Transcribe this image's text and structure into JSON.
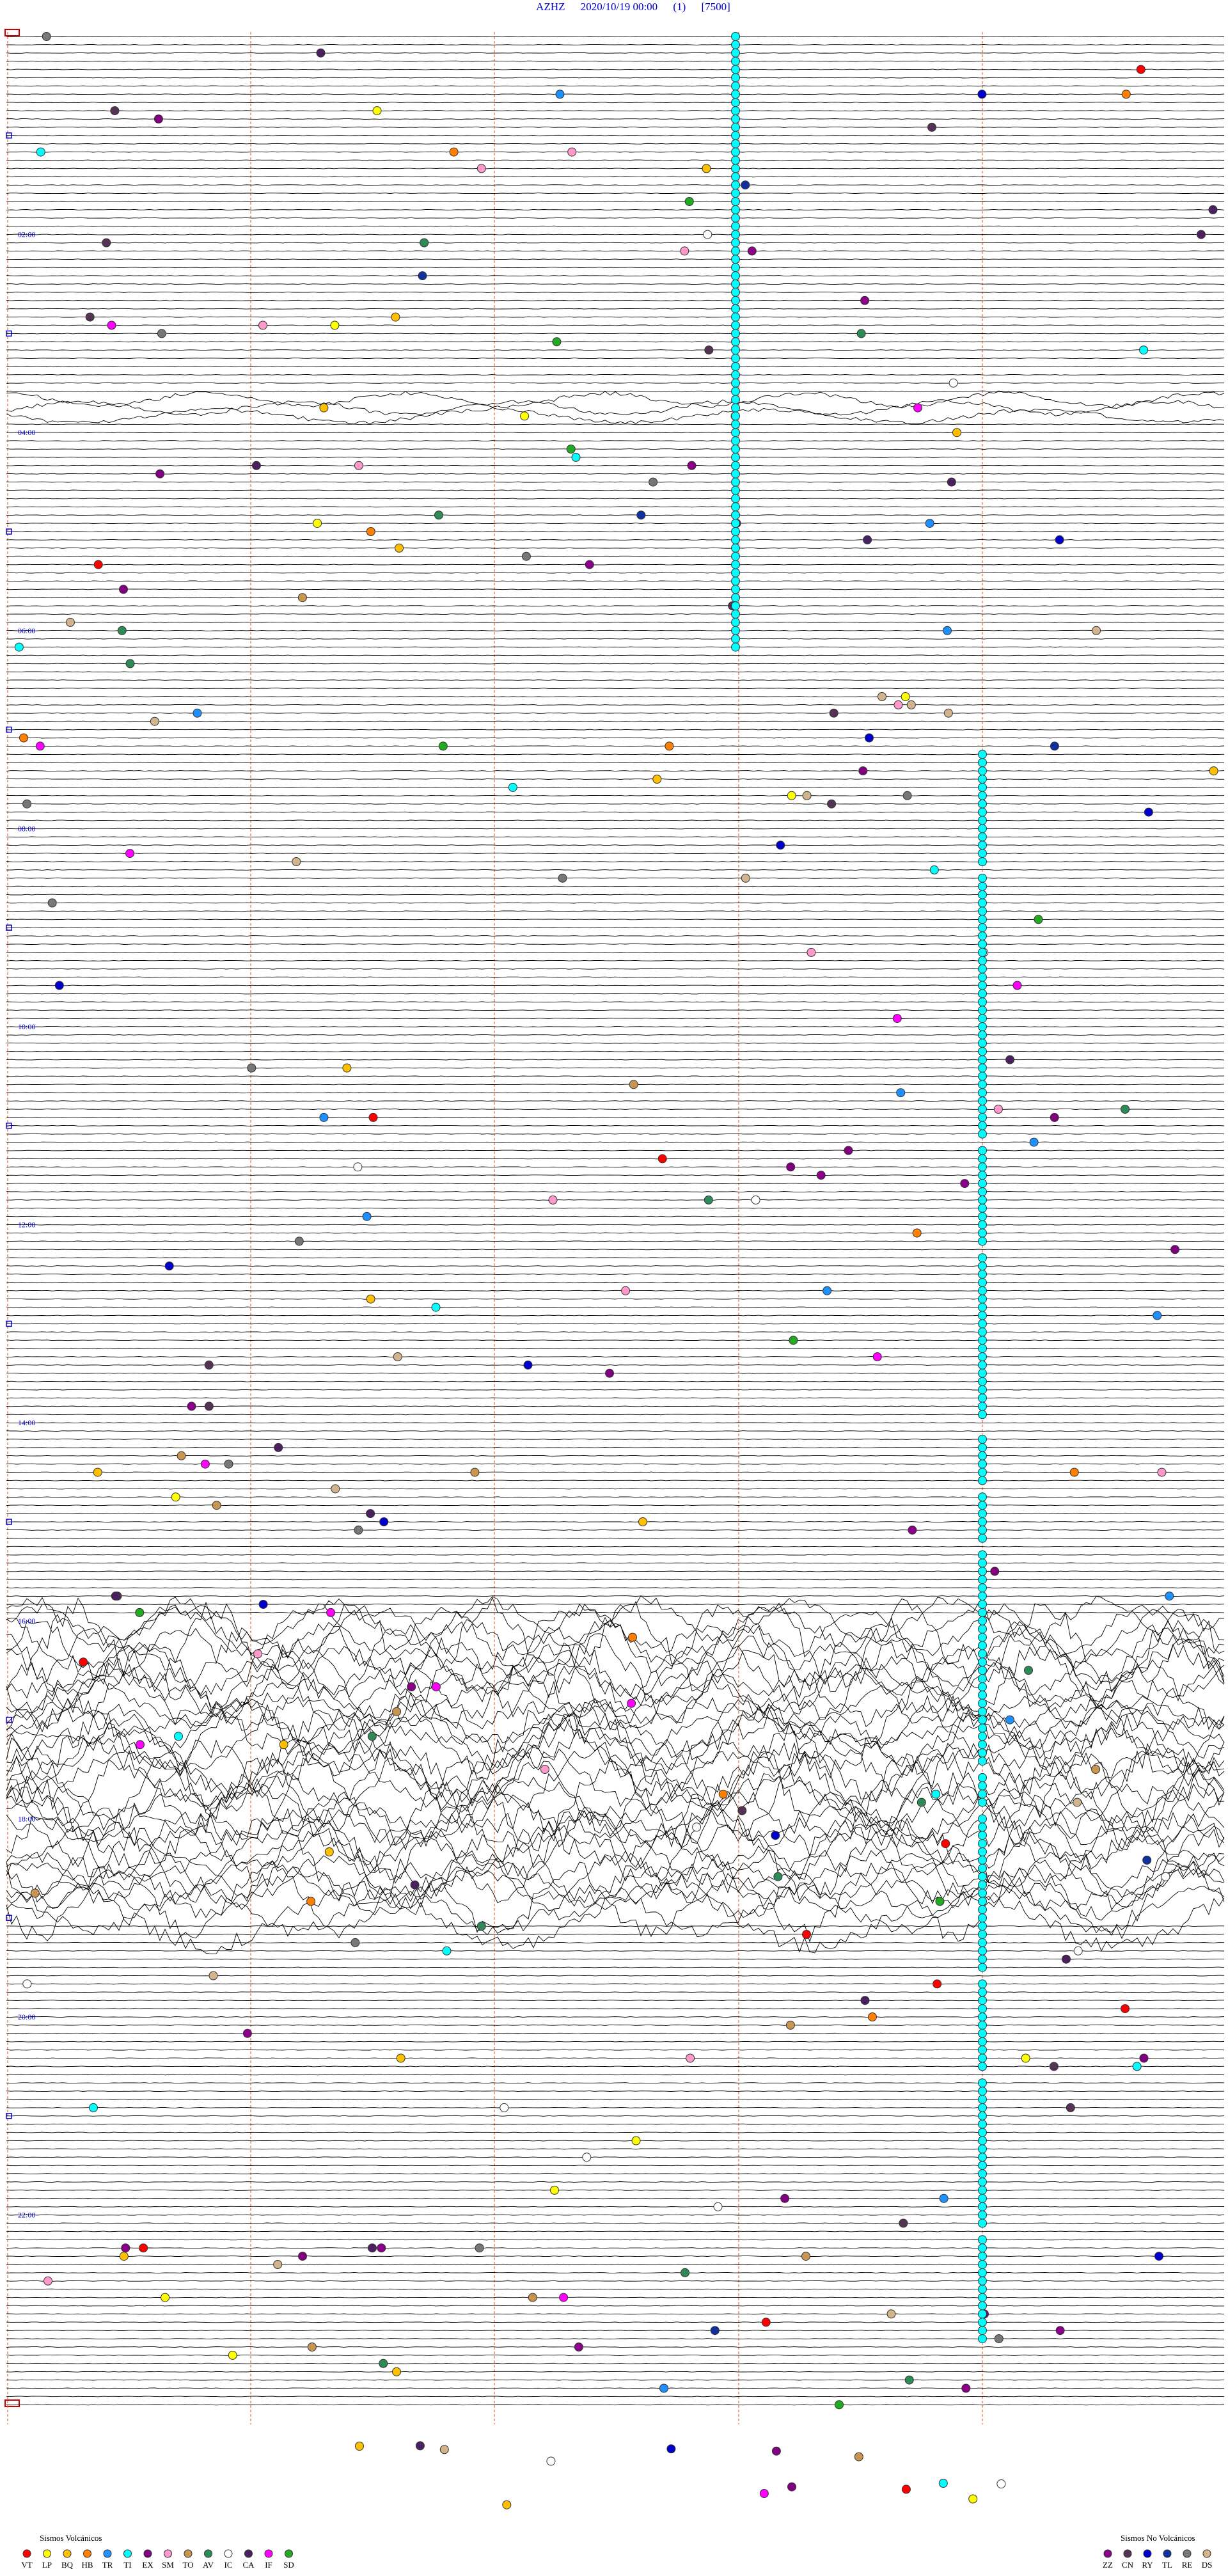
{
  "header": {
    "station": "AZHZ",
    "datetime": "2020/10/19 00:00",
    "channel": "(1)",
    "scale": "[7500]"
  },
  "time_labels": [
    "02:00",
    "04:00",
    "06:00",
    "08:00",
    "10:00",
    "12:00",
    "14:00",
    "16:00",
    "18:00",
    "20:00",
    "22:00"
  ],
  "legend": {
    "volcanic": {
      "title": "Sismos Volcánicos",
      "items": [
        {
          "code": "VT",
          "color": "#ff0000"
        },
        {
          "code": "LP",
          "color": "#ffff00"
        },
        {
          "code": "BQ",
          "color": "#ffc000"
        },
        {
          "code": "HB",
          "color": "#ff8000"
        },
        {
          "code": "TR",
          "color": "#1e90ff"
        },
        {
          "code": "TI",
          "color": "#00ffff"
        },
        {
          "code": "EX",
          "color": "#800080"
        },
        {
          "code": "SM",
          "color": "#ff99cc"
        },
        {
          "code": "TO",
          "color": "#c89650"
        },
        {
          "code": "AV",
          "color": "#2e8b57"
        },
        {
          "code": "IC",
          "color": "#ffffff"
        },
        {
          "code": "CA",
          "color": "#4b2060"
        },
        {
          "code": "IF",
          "color": "#ff00ff"
        },
        {
          "code": "SD",
          "color": "#22aa22"
        }
      ]
    },
    "non_volcanic": {
      "title": "Sismos No Volcánicos",
      "items": [
        {
          "code": "ZZ",
          "color": "#8b008b"
        },
        {
          "code": "CN",
          "color": "#553355"
        },
        {
          "code": "RY",
          "color": "#0000cc"
        },
        {
          "code": "TL",
          "color": "#1030a0"
        },
        {
          "code": "RE",
          "color": "#777777"
        },
        {
          "code": "DS",
          "color": "#d2b48c"
        }
      ]
    }
  }
}
